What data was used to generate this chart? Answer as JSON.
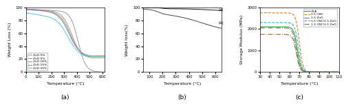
{
  "fig_width": 5.0,
  "fig_height": 1.55,
  "dpi": 100,
  "panel_a": {
    "xlabel": "Temperature (°C)",
    "ylabel": "Weight Loss (%)",
    "xlim": [
      0,
      620
    ],
    "ylim": [
      0,
      100
    ],
    "label_a": "(a)",
    "legend_labels": [
      "ZnO 0%",
      "ZnO 5%",
      "ZnO 10%",
      "ZnO 15%",
      "ZnO 20%"
    ],
    "colors": [
      "#999999",
      "#d08080",
      "#6aaa6a",
      "#8080c0",
      "#50c8c8"
    ],
    "xticks": [
      0,
      100,
      200,
      300,
      400,
      500,
      600
    ],
    "yticks": [
      0,
      20,
      40,
      60,
      80,
      100
    ]
  },
  "panel_b": {
    "xlabel": "Temperature (°C)",
    "ylabel": "Weight loss(%)",
    "xlim": [
      50,
      650
    ],
    "ylim": [
      0,
      100
    ],
    "label_b": "(b)",
    "curve_labels": [
      "(a)",
      "(b)"
    ],
    "colors": [
      "#111111",
      "#444444"
    ],
    "xticks": [
      100,
      200,
      300,
      400,
      500,
      600
    ],
    "yticks": [
      0,
      20,
      40,
      60,
      80,
      100
    ]
  },
  "panel_c": {
    "xlabel": "Temperature (°C)",
    "ylabel": "Storage Modulus (MPa)",
    "xlim": [
      30,
      110
    ],
    "ylim": [
      0,
      3000
    ],
    "label_c": "(c)",
    "legend_labels": [
      "PLA",
      "1.5 CNC",
      "1.5 ZnO",
      "1.5 CNC/1.5 ZnO",
      "1.5 CNC/2.5 ZnO"
    ],
    "colors": [
      "#2ca02c",
      "#e07820",
      "#707070",
      "#20b0c8",
      "#907020"
    ],
    "linestyles": [
      "-",
      "--",
      "-.",
      "--",
      "-."
    ],
    "yticks": [
      0,
      1000,
      2000,
      3000
    ],
    "xticks": [
      30,
      40,
      50,
      60,
      70,
      80,
      90,
      100,
      110
    ]
  }
}
